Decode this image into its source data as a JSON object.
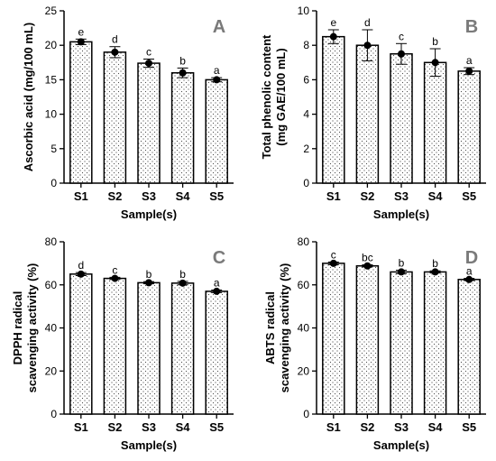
{
  "chart_data": [
    {
      "type": "bar",
      "panel": "A",
      "categories": [
        "S1",
        "S2",
        "S3",
        "S4",
        "S5"
      ],
      "values": [
        20.5,
        19.0,
        17.4,
        16.0,
        15.0
      ],
      "errors": [
        0.4,
        0.8,
        0.6,
        0.7,
        0.3
      ],
      "significance": [
        "e",
        "d",
        "c",
        "b",
        "a"
      ],
      "xlabel": "Sample(s)",
      "ylabel": [
        "Ascorbic acid (mg/100 mL)"
      ],
      "ylim": [
        0,
        25
      ],
      "yticks": [
        0,
        5,
        10,
        15,
        20,
        25
      ],
      "bar_pattern": "dotted",
      "grid": false
    },
    {
      "type": "bar",
      "panel": "B",
      "categories": [
        "S1",
        "S2",
        "S3",
        "S4",
        "S5"
      ],
      "values": [
        8.5,
        8.0,
        7.5,
        7.0,
        6.5
      ],
      "errors": [
        0.4,
        0.9,
        0.6,
        0.8,
        0.2
      ],
      "significance": [
        "e",
        "d",
        "c",
        "b",
        "a"
      ],
      "xlabel": "Sample(s)",
      "ylabel": [
        "Total phenolic content",
        "(mg GAE/100 mL)"
      ],
      "ylim": [
        0,
        10
      ],
      "yticks": [
        0,
        2,
        4,
        6,
        8,
        10
      ],
      "bar_pattern": "dotted",
      "grid": false
    },
    {
      "type": "bar",
      "panel": "C",
      "categories": [
        "S1",
        "S2",
        "S3",
        "S4",
        "S5"
      ],
      "values": [
        65.0,
        63.0,
        61.0,
        60.8,
        57.0
      ],
      "errors": [
        0.7,
        0.5,
        0.5,
        0.8,
        0.6
      ],
      "significance": [
        "d",
        "c",
        "b",
        "b",
        "a"
      ],
      "xlabel": "Sample(s)",
      "ylabel": [
        "DPPH radical",
        "scavenging activity (%)"
      ],
      "ylim": [
        0,
        80
      ],
      "yticks": [
        0,
        20,
        40,
        60,
        80
      ],
      "bar_pattern": "dotted",
      "grid": false
    },
    {
      "type": "bar",
      "panel": "D",
      "categories": [
        "S1",
        "S2",
        "S3",
        "S4",
        "S5"
      ],
      "values": [
        70.0,
        68.8,
        66.0,
        66.0,
        62.5
      ],
      "errors": [
        0.6,
        0.5,
        0.8,
        0.5,
        0.5
      ],
      "significance": [
        "c",
        "bc",
        "b",
        "b",
        "a"
      ],
      "xlabel": "Sample(s)",
      "ylabel": [
        "ABTS radical",
        "scavenging activity (%)"
      ],
      "ylim": [
        0,
        80
      ],
      "yticks": [
        0,
        20,
        40,
        60,
        80
      ],
      "bar_pattern": "dotted",
      "grid": false
    }
  ],
  "colors": {
    "bar_fill": "#ffffff",
    "bar_stroke": "#000000",
    "dot_pattern": "#4a4a4a",
    "marker": "#000000",
    "panel_letter": "#7a7a7a"
  }
}
